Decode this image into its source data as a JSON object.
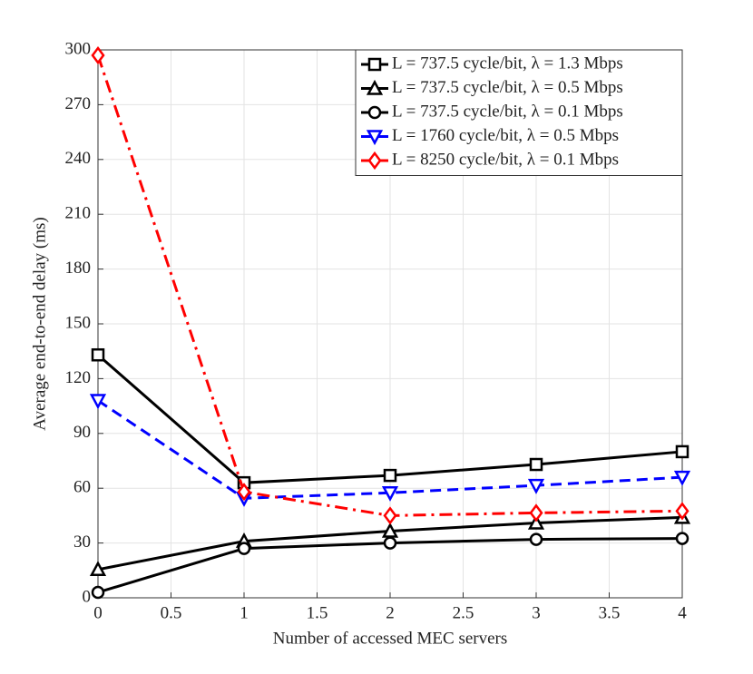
{
  "chart_data": {
    "type": "line",
    "xlabel": "Number of accessed MEC servers",
    "ylabel": "Average end-to-end delay (ms)",
    "x": [
      0,
      1,
      2,
      3,
      4
    ],
    "xlim": [
      0,
      4
    ],
    "xticks": [
      0,
      0.5,
      1,
      1.5,
      2,
      2.5,
      3,
      3.5,
      4
    ],
    "ylim": [
      0,
      300
    ],
    "yticks": [
      0,
      30,
      60,
      90,
      120,
      150,
      180,
      210,
      240,
      270,
      300
    ],
    "grid": true,
    "legend": "upper right",
    "series": [
      {
        "name": "L = 737.5 cycle/bit, λ = 1.3 Mbps",
        "color": "#000000",
        "marker": "square",
        "linestyle": "solid",
        "values": [
          133,
          63,
          67,
          73,
          80
        ]
      },
      {
        "name": "L = 737.5 cycle/bit, λ = 0.5 Mbps",
        "color": "#000000",
        "marker": "triangle-up",
        "linestyle": "solid",
        "values": [
          15.5,
          31,
          36.5,
          41,
          44
        ]
      },
      {
        "name": "L = 737.5 cycle/bit, λ = 0.1 Mbps",
        "color": "#000000",
        "marker": "circle",
        "linestyle": "solid",
        "values": [
          3,
          27,
          30,
          32,
          32.5
        ]
      },
      {
        "name": "L = 1760 cycle/bit, λ = 0.5 Mbps",
        "color": "#0000ff",
        "marker": "triangle-down",
        "linestyle": "dashed",
        "values": [
          108,
          54.5,
          57.5,
          61.5,
          66
        ]
      },
      {
        "name": "L = 8250 cycle/bit, λ = 0.1 Mbps",
        "color": "#ff0000",
        "marker": "diamond",
        "linestyle": "dashdot",
        "values": [
          297,
          58,
          45,
          46.5,
          47.5
        ]
      }
    ]
  }
}
